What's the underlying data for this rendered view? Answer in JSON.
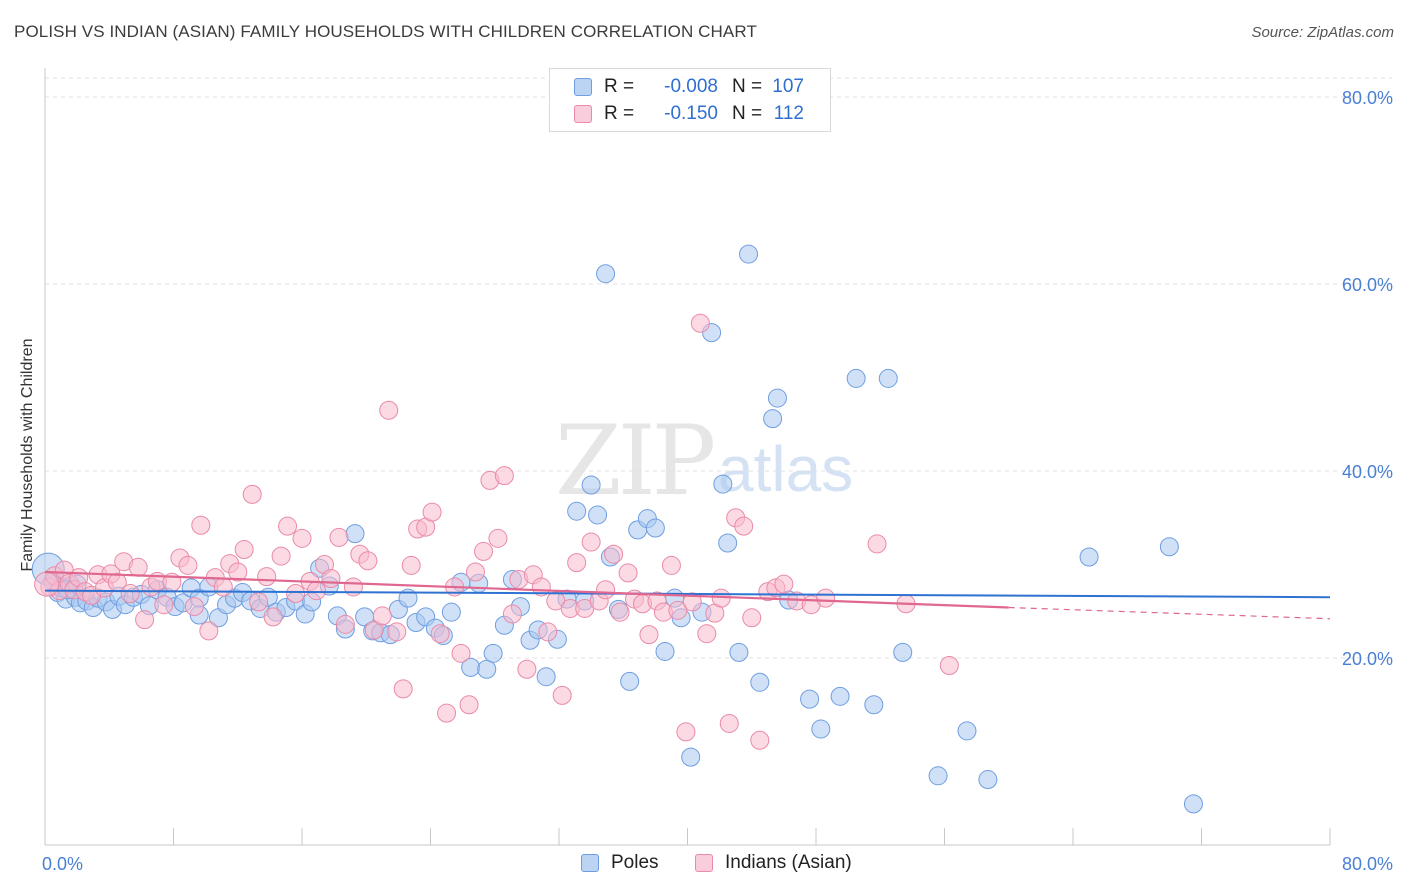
{
  "header": {
    "title": "POLISH VS INDIAN (ASIAN) FAMILY HOUSEHOLDS WITH CHILDREN CORRELATION CHART",
    "source": "Source: ZipAtlas.com"
  },
  "watermark": {
    "part1": "ZIP",
    "part2": "atlas"
  },
  "legend": {
    "poles": {
      "r_label": "R =",
      "r_value": "-0.008",
      "n_label": "N =",
      "n_value": "107"
    },
    "indians": {
      "r_label": "R =",
      "r_value": "-0.150",
      "n_label": "N =",
      "n_value": "112"
    }
  },
  "bottom_legend": {
    "poles": "Poles",
    "indians": "Indians (Asian)"
  },
  "colors": {
    "poles_fill": "#aac8f0",
    "poles_stroke": "#6f9ee0",
    "poles_line": "#2e72d2",
    "indians_fill": "#f7bccd",
    "indians_stroke": "#ea8aa8",
    "indians_line": "#e0678f",
    "grid": "#e0e0e0",
    "tick_text": "#4a7fd4"
  },
  "chart_data": {
    "type": "scatter",
    "title": "POLISH VS INDIAN (ASIAN) FAMILY HOUSEHOLDS WITH CHILDREN CORRELATION CHART",
    "xlabel": "",
    "ylabel": "Family Households with Children",
    "xlim": [
      0,
      80
    ],
    "ylim": [
      0,
      85
    ],
    "x_tick_labels": [
      "0.0%",
      "80.0%"
    ],
    "y_ticks": [
      20,
      40,
      60,
      80
    ],
    "y_tick_labels": [
      "20.0%",
      "40.0%",
      "60.0%",
      "80.0%"
    ],
    "series": [
      {
        "name": "Poles",
        "trend": {
          "x": [
            0,
            80
          ],
          "y": [
            27.2,
            26.5
          ],
          "dashed_from": null
        },
        "points": [
          [
            0.2,
            29.5
          ],
          [
            0.5,
            28.2
          ],
          [
            0.8,
            27.0
          ],
          [
            1.0,
            27.5
          ],
          [
            1.3,
            26.3
          ],
          [
            1.6,
            27.8
          ],
          [
            1.9,
            26.5
          ],
          [
            2.2,
            25.9
          ],
          [
            2.6,
            26.1
          ],
          [
            3.0,
            25.4
          ],
          [
            3.3,
            26.4
          ],
          [
            3.8,
            26.0
          ],
          [
            4.2,
            25.2
          ],
          [
            4.6,
            26.6
          ],
          [
            5.0,
            25.7
          ],
          [
            5.5,
            26.5
          ],
          [
            6.0,
            26.8
          ],
          [
            6.5,
            25.6
          ],
          [
            7.0,
            27.3
          ],
          [
            7.6,
            26.5
          ],
          [
            8.1,
            25.5
          ],
          [
            8.6,
            25.9
          ],
          [
            9.1,
            27.5
          ],
          [
            9.6,
            26.4
          ],
          [
            10.2,
            27.6
          ],
          [
            10.8,
            24.3
          ],
          [
            11.3,
            25.7
          ],
          [
            11.8,
            26.4
          ],
          [
            12.3,
            27.0
          ],
          [
            12.8,
            26.1
          ],
          [
            13.4,
            25.3
          ],
          [
            13.9,
            26.5
          ],
          [
            14.4,
            24.9
          ],
          [
            15.0,
            25.4
          ],
          [
            15.6,
            26.1
          ],
          [
            16.2,
            24.7
          ],
          [
            16.6,
            26.0
          ],
          [
            17.1,
            29.6
          ],
          [
            17.7,
            27.7
          ],
          [
            18.2,
            24.5
          ],
          [
            18.7,
            23.1
          ],
          [
            19.3,
            33.3
          ],
          [
            19.9,
            24.4
          ],
          [
            20.4,
            22.9
          ],
          [
            20.9,
            22.7
          ],
          [
            21.5,
            22.5
          ],
          [
            22.0,
            25.2
          ],
          [
            22.6,
            26.4
          ],
          [
            23.1,
            23.8
          ],
          [
            23.7,
            24.4
          ],
          [
            24.3,
            23.2
          ],
          [
            24.8,
            22.4
          ],
          [
            25.3,
            24.9
          ],
          [
            25.9,
            28.1
          ],
          [
            26.5,
            19.0
          ],
          [
            27.0,
            28.0
          ],
          [
            27.5,
            18.8
          ],
          [
            27.9,
            20.5
          ],
          [
            28.6,
            23.5
          ],
          [
            29.1,
            28.4
          ],
          [
            29.6,
            25.5
          ],
          [
            30.2,
            21.9
          ],
          [
            30.7,
            23.0
          ],
          [
            31.2,
            18.0
          ],
          [
            31.9,
            22.0
          ],
          [
            32.5,
            26.3
          ],
          [
            33.1,
            35.7
          ],
          [
            33.6,
            26.1
          ],
          [
            34.0,
            38.5
          ],
          [
            34.4,
            35.3
          ],
          [
            34.9,
            61.1
          ],
          [
            35.2,
            30.8
          ],
          [
            35.7,
            25.2
          ],
          [
            36.4,
            17.5
          ],
          [
            36.9,
            33.7
          ],
          [
            37.5,
            34.9
          ],
          [
            38.0,
            33.9
          ],
          [
            38.6,
            20.7
          ],
          [
            39.2,
            26.4
          ],
          [
            39.6,
            24.3
          ],
          [
            40.2,
            9.4
          ],
          [
            40.9,
            24.9
          ],
          [
            41.5,
            54.8
          ],
          [
            42.2,
            38.6
          ],
          [
            42.5,
            32.3
          ],
          [
            43.2,
            20.6
          ],
          [
            43.8,
            63.2
          ],
          [
            44.5,
            17.4
          ],
          [
            45.3,
            45.6
          ],
          [
            45.6,
            47.8
          ],
          [
            46.3,
            26.2
          ],
          [
            47.6,
            15.6
          ],
          [
            48.3,
            12.4
          ],
          [
            49.5,
            15.9
          ],
          [
            50.5,
            49.9
          ],
          [
            51.6,
            15.0
          ],
          [
            52.5,
            49.9
          ],
          [
            53.4,
            20.6
          ],
          [
            55.6,
            7.4
          ],
          [
            57.4,
            12.2
          ],
          [
            58.7,
            7.0
          ],
          [
            65.0,
            30.8
          ],
          [
            70.0,
            31.9
          ],
          [
            71.5,
            4.4
          ],
          [
            1.4,
            27.3
          ],
          [
            2.0,
            27.9
          ],
          [
            9.6,
            24.6
          ]
        ]
      },
      {
        "name": "Indians (Asian)",
        "trend": {
          "x": [
            0,
            60,
            80
          ],
          "y": [
            29.2,
            25.4,
            24.2
          ],
          "dashed_from": 60
        },
        "points": [
          [
            0.3,
            27.6
          ],
          [
            0.6,
            28.8
          ],
          [
            0.9,
            27.2
          ],
          [
            1.2,
            29.4
          ],
          [
            1.5,
            28.0
          ],
          [
            1.8,
            27.3
          ],
          [
            2.1,
            28.6
          ],
          [
            2.5,
            27.1
          ],
          [
            2.9,
            26.7
          ],
          [
            3.3,
            28.9
          ],
          [
            3.7,
            27.5
          ],
          [
            4.1,
            29.0
          ],
          [
            4.5,
            28.1
          ],
          [
            4.9,
            30.3
          ],
          [
            5.3,
            26.9
          ],
          [
            5.8,
            29.7
          ],
          [
            6.2,
            24.1
          ],
          [
            6.6,
            27.6
          ],
          [
            7.0,
            28.2
          ],
          [
            7.4,
            25.7
          ],
          [
            7.9,
            28.1
          ],
          [
            8.4,
            30.7
          ],
          [
            8.9,
            29.9
          ],
          [
            9.3,
            25.5
          ],
          [
            9.7,
            34.2
          ],
          [
            10.2,
            22.9
          ],
          [
            10.6,
            28.6
          ],
          [
            11.1,
            27.6
          ],
          [
            11.5,
            30.1
          ],
          [
            12.0,
            29.2
          ],
          [
            12.4,
            31.6
          ],
          [
            12.9,
            37.5
          ],
          [
            13.3,
            26.0
          ],
          [
            13.8,
            28.7
          ],
          [
            14.2,
            24.4
          ],
          [
            14.7,
            30.9
          ],
          [
            15.1,
            34.1
          ],
          [
            15.6,
            26.9
          ],
          [
            16.0,
            32.8
          ],
          [
            16.5,
            28.2
          ],
          [
            16.9,
            27.2
          ],
          [
            17.4,
            30.0
          ],
          [
            17.8,
            28.5
          ],
          [
            18.3,
            32.9
          ],
          [
            18.7,
            23.6
          ],
          [
            19.2,
            27.6
          ],
          [
            19.6,
            31.1
          ],
          [
            20.1,
            30.4
          ],
          [
            20.5,
            23.0
          ],
          [
            21.0,
            24.5
          ],
          [
            21.4,
            46.5
          ],
          [
            21.9,
            22.8
          ],
          [
            22.3,
            16.7
          ],
          [
            22.8,
            29.9
          ],
          [
            23.2,
            33.8
          ],
          [
            23.7,
            34.0
          ],
          [
            24.1,
            35.6
          ],
          [
            24.6,
            22.6
          ],
          [
            25.0,
            14.1
          ],
          [
            25.5,
            27.6
          ],
          [
            25.9,
            20.5
          ],
          [
            26.4,
            15.0
          ],
          [
            26.8,
            29.2
          ],
          [
            27.3,
            31.4
          ],
          [
            27.7,
            39.0
          ],
          [
            28.2,
            32.8
          ],
          [
            28.6,
            39.5
          ],
          [
            29.1,
            24.7
          ],
          [
            29.5,
            28.4
          ],
          [
            30.0,
            18.8
          ],
          [
            30.4,
            28.9
          ],
          [
            30.9,
            27.6
          ],
          [
            31.3,
            22.8
          ],
          [
            31.8,
            26.1
          ],
          [
            32.2,
            16.0
          ],
          [
            32.7,
            25.3
          ],
          [
            33.1,
            30.2
          ],
          [
            33.6,
            25.3
          ],
          [
            34.0,
            32.4
          ],
          [
            34.5,
            26.1
          ],
          [
            34.9,
            27.3
          ],
          [
            35.4,
            31.1
          ],
          [
            35.8,
            24.9
          ],
          [
            36.3,
            29.1
          ],
          [
            36.7,
            26.3
          ],
          [
            37.2,
            25.8
          ],
          [
            37.6,
            22.5
          ],
          [
            38.1,
            26.1
          ],
          [
            38.5,
            24.9
          ],
          [
            39.0,
            29.9
          ],
          [
            39.4,
            25.1
          ],
          [
            39.9,
            12.1
          ],
          [
            40.3,
            26.0
          ],
          [
            40.8,
            55.8
          ],
          [
            41.2,
            22.6
          ],
          [
            41.7,
            24.8
          ],
          [
            42.1,
            26.4
          ],
          [
            42.6,
            13.0
          ],
          [
            43.0,
            35.0
          ],
          [
            43.5,
            34.1
          ],
          [
            44.0,
            24.3
          ],
          [
            44.5,
            11.2
          ],
          [
            45.0,
            27.1
          ],
          [
            45.5,
            27.5
          ],
          [
            46.0,
            27.9
          ],
          [
            46.8,
            26.1
          ],
          [
            47.7,
            25.7
          ],
          [
            48.6,
            26.4
          ],
          [
            51.8,
            32.2
          ],
          [
            53.6,
            25.8
          ],
          [
            56.3,
            19.2
          ],
          [
            0.1,
            27.9
          ]
        ]
      }
    ]
  }
}
